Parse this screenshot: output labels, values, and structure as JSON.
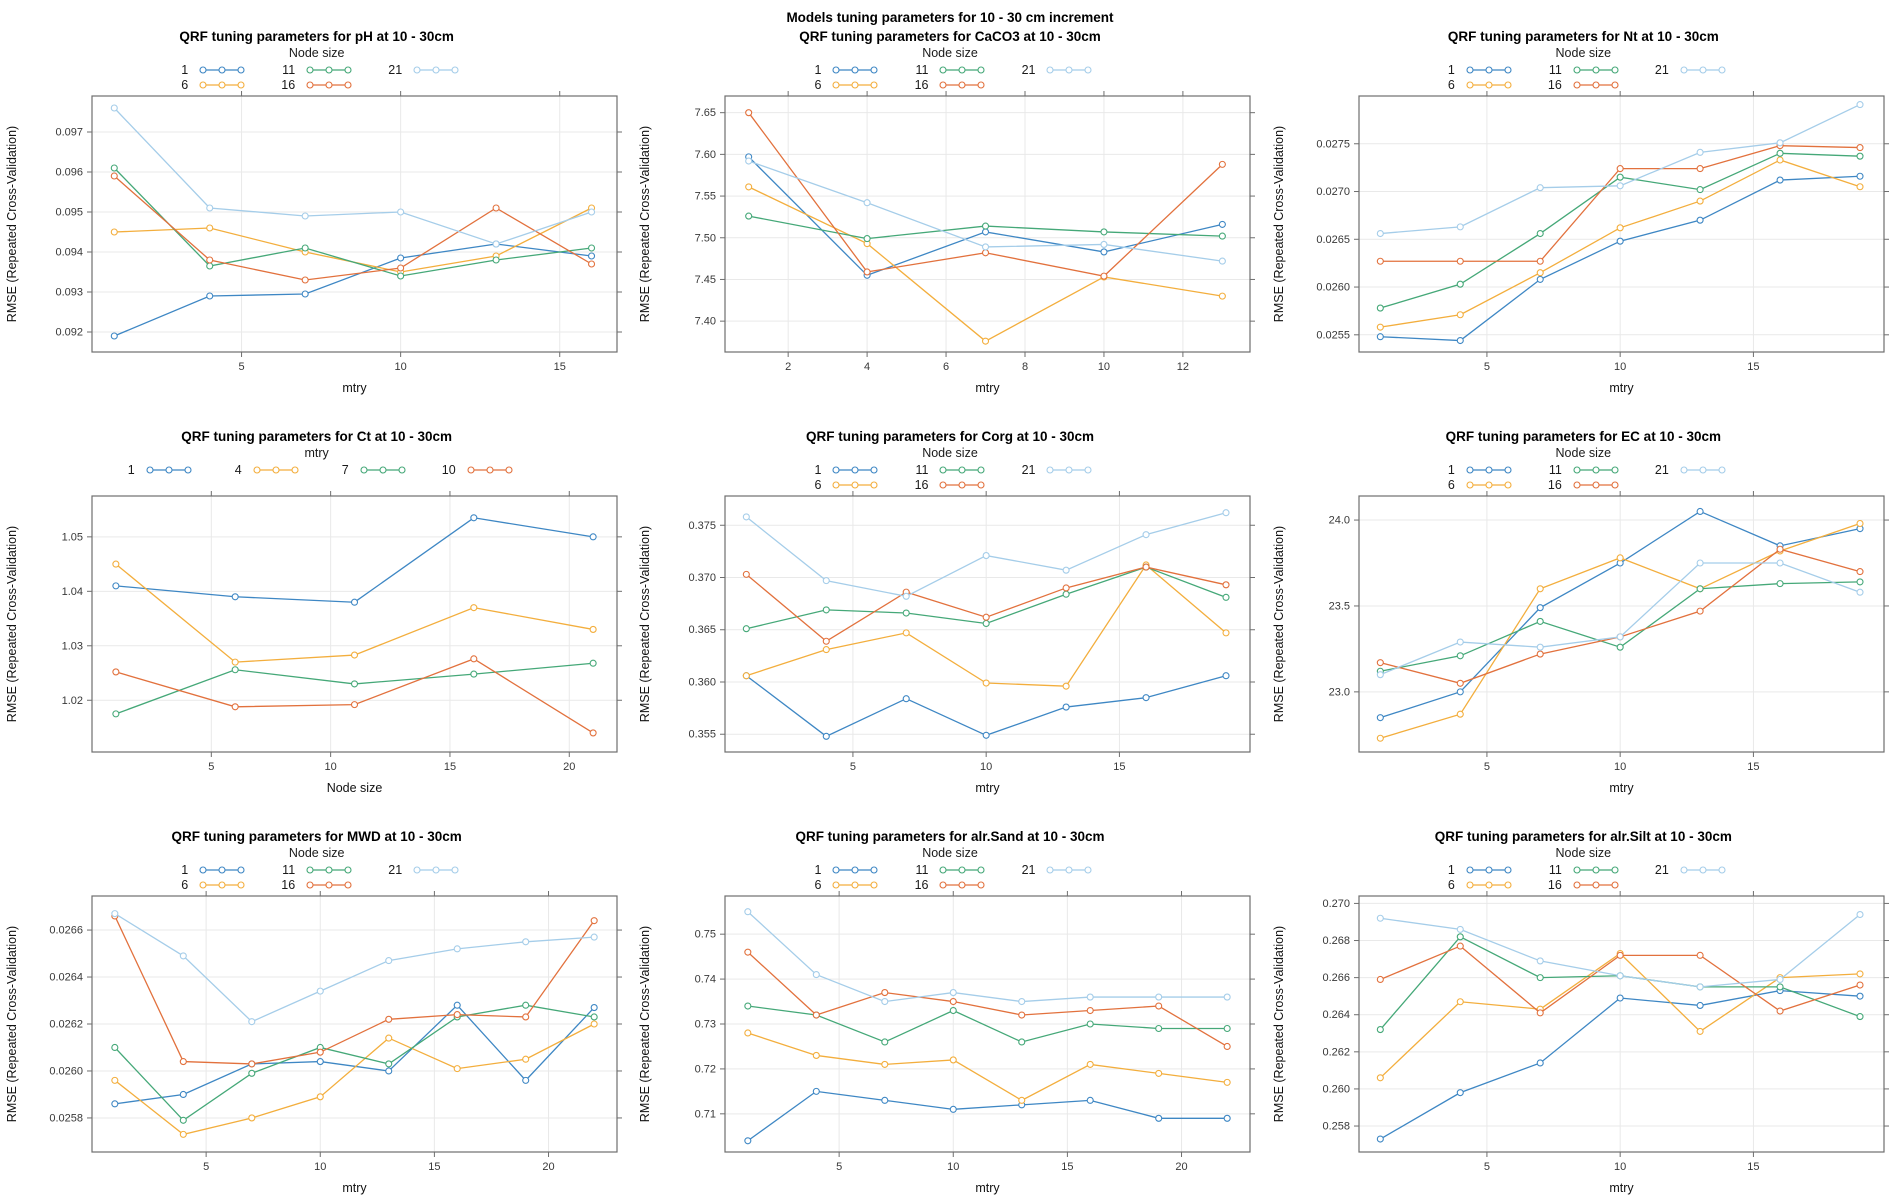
{
  "figure": {
    "background": "#ffffff",
    "border_color": "#6e6e6e",
    "grid_color": "#e9e9e9",
    "tick_color": "#6e6e6e"
  },
  "chart_data": [
    {
      "id": "ph",
      "type": "line",
      "title": "QRF tuning parameters for pH at 10 - 30cm",
      "legend_title": "Node size",
      "legend_position": "top",
      "xlabel": "mtry",
      "ylabel": "RMSE (Repeated Cross-Validation)",
      "x": [
        1,
        4,
        7,
        10,
        13,
        16
      ],
      "xticks": [
        5,
        10,
        15
      ],
      "xlim": [
        0.3,
        16.8
      ],
      "yticks": [
        0.092,
        0.093,
        0.094,
        0.095,
        0.096,
        0.097
      ],
      "ytick_labels": [
        "0.092",
        "0.093",
        "0.094",
        "0.095",
        "0.096",
        "0.097"
      ],
      "ylim": [
        0.0915,
        0.0979
      ],
      "grid": true,
      "series": [
        {
          "name": "1",
          "color": "#3E87C4",
          "values": [
            0.0919,
            0.0929,
            0.09295,
            0.09385,
            0.0942,
            0.0939
          ]
        },
        {
          "name": "6",
          "color": "#F3AE3D",
          "values": [
            0.0945,
            0.0946,
            0.094,
            0.0935,
            0.0939,
            0.0951
          ]
        },
        {
          "name": "11",
          "color": "#45A878",
          "values": [
            0.0961,
            0.09365,
            0.0941,
            0.0934,
            0.0938,
            0.0941
          ]
        },
        {
          "name": "16",
          "color": "#E2713D",
          "values": [
            0.0959,
            0.0938,
            0.0933,
            0.0936,
            0.0951,
            0.0937
          ]
        },
        {
          "name": "21",
          "color": "#A5CDE9",
          "values": [
            0.0976,
            0.0951,
            0.0949,
            0.095,
            0.0942,
            0.095
          ]
        }
      ]
    },
    {
      "id": "caco3",
      "type": "line",
      "supertitle": "Models tuning parameters for 10 - 30 cm increment",
      "title": "QRF tuning parameters for CaCO3 at 10 - 30cm",
      "legend_title": "Node size",
      "legend_position": "top",
      "xlabel": "mtry",
      "ylabel": "RMSE (Repeated Cross-Validation)",
      "x": [
        1,
        4,
        7,
        10,
        13
      ],
      "xticks": [
        2,
        4,
        6,
        8,
        10,
        12
      ],
      "xlim": [
        0.4,
        13.7
      ],
      "yticks": [
        7.4,
        7.45,
        7.5,
        7.55,
        7.6,
        7.65
      ],
      "ytick_labels": [
        "7.40",
        "7.45",
        "7.50",
        "7.55",
        "7.60",
        "7.65"
      ],
      "ylim": [
        7.363,
        7.67
      ],
      "grid": true,
      "series": [
        {
          "name": "1",
          "color": "#3E87C4",
          "values": [
            7.597,
            7.455,
            7.507,
            7.483,
            7.516
          ]
        },
        {
          "name": "6",
          "color": "#F3AE3D",
          "values": [
            7.561,
            7.493,
            7.376,
            7.453,
            7.43
          ]
        },
        {
          "name": "11",
          "color": "#45A878",
          "values": [
            7.526,
            7.499,
            7.514,
            7.507,
            7.502
          ]
        },
        {
          "name": "16",
          "color": "#E2713D",
          "values": [
            7.65,
            7.459,
            7.482,
            7.454,
            7.588
          ]
        },
        {
          "name": "21",
          "color": "#A5CDE9",
          "values": [
            7.592,
            7.542,
            7.489,
            7.492,
            7.472
          ]
        }
      ]
    },
    {
      "id": "nt",
      "type": "line",
      "title": "QRF tuning parameters for Nt at 10 - 30cm",
      "legend_title": "Node size",
      "legend_position": "top",
      "xlabel": "mtry",
      "ylabel": "RMSE (Repeated Cross-Validation)",
      "x": [
        1,
        4,
        7,
        10,
        13,
        16,
        19
      ],
      "xticks": [
        5,
        10,
        15
      ],
      "xlim": [
        0.2,
        19.9
      ],
      "yticks": [
        0.0255,
        0.026,
        0.0265,
        0.027,
        0.0275
      ],
      "ytick_labels": [
        "0.0255",
        "0.0260",
        "0.0265",
        "0.0270",
        "0.0275"
      ],
      "ylim": [
        0.02532,
        0.028
      ],
      "grid": true,
      "series": [
        {
          "name": "1",
          "color": "#3E87C4",
          "values": [
            0.02548,
            0.02544,
            0.02608,
            0.02648,
            0.0267,
            0.02712,
            0.02716
          ]
        },
        {
          "name": "6",
          "color": "#F3AE3D",
          "values": [
            0.02558,
            0.02571,
            0.02615,
            0.02662,
            0.0269,
            0.02733,
            0.02705
          ]
        },
        {
          "name": "11",
          "color": "#45A878",
          "values": [
            0.02578,
            0.02603,
            0.02656,
            0.02715,
            0.02702,
            0.0274,
            0.02737
          ]
        },
        {
          "name": "16",
          "color": "#E2713D",
          "values": [
            0.02627,
            0.02627,
            0.02627,
            0.02724,
            0.02724,
            0.02748,
            0.02746
          ]
        },
        {
          "name": "21",
          "color": "#A5CDE9",
          "values": [
            0.02656,
            0.02663,
            0.02704,
            0.02706,
            0.02741,
            0.02751,
            0.02791
          ]
        }
      ]
    },
    {
      "id": "ct",
      "type": "line",
      "title": "QRF tuning parameters for Ct at 10 - 30cm",
      "legend_title": "mtry",
      "legend_position": "top",
      "xlabel": "Node size",
      "ylabel": "RMSE (Repeated Cross-Validation)",
      "x": [
        1,
        6,
        11,
        16,
        21
      ],
      "xticks": [
        5,
        10,
        15,
        20
      ],
      "xlim": [
        0,
        22
      ],
      "yticks": [
        1.02,
        1.03,
        1.04,
        1.05
      ],
      "ytick_labels": [
        "1.02",
        "1.03",
        "1.04",
        "1.05"
      ],
      "ylim": [
        1.0105,
        1.0575
      ],
      "grid": true,
      "series": [
        {
          "name": "1",
          "color": "#3E87C4",
          "values": [
            1.041,
            1.039,
            1.038,
            1.0535,
            1.05
          ]
        },
        {
          "name": "4",
          "color": "#F3AE3D",
          "values": [
            1.045,
            1.027,
            1.0283,
            1.037,
            1.033
          ]
        },
        {
          "name": "7",
          "color": "#45A878",
          "values": [
            1.0175,
            1.0256,
            1.023,
            1.0248,
            1.0268
          ]
        },
        {
          "name": "10",
          "color": "#E2713D",
          "values": [
            1.0252,
            1.0188,
            1.0192,
            1.0276,
            1.014
          ]
        }
      ]
    },
    {
      "id": "corg",
      "type": "line",
      "title": "QRF tuning parameters for Corg at 10 - 30cm",
      "legend_title": "Node size",
      "legend_position": "top",
      "xlabel": "mtry",
      "ylabel": "RMSE (Repeated Cross-Validation)",
      "x": [
        1,
        4,
        7,
        10,
        13,
        16,
        19
      ],
      "xticks": [
        5,
        10,
        15
      ],
      "xlim": [
        0.2,
        19.9
      ],
      "yticks": [
        0.355,
        0.36,
        0.365,
        0.37,
        0.375
      ],
      "ytick_labels": [
        "0.355",
        "0.360",
        "0.365",
        "0.370",
        "0.375"
      ],
      "ylim": [
        0.3533,
        0.3778
      ],
      "grid": true,
      "series": [
        {
          "name": "1",
          "color": "#3E87C4",
          "values": [
            0.3606,
            0.3548,
            0.3584,
            0.3549,
            0.3576,
            0.3585,
            0.3606
          ]
        },
        {
          "name": "6",
          "color": "#F3AE3D",
          "values": [
            0.3606,
            0.3631,
            0.3647,
            0.3599,
            0.3596,
            0.3712,
            0.3647
          ]
        },
        {
          "name": "11",
          "color": "#45A878",
          "values": [
            0.3651,
            0.3669,
            0.3666,
            0.3656,
            0.3684,
            0.371,
            0.3681
          ]
        },
        {
          "name": "16",
          "color": "#E2713D",
          "values": [
            0.3703,
            0.3639,
            0.3686,
            0.3662,
            0.369,
            0.371,
            0.3693
          ]
        },
        {
          "name": "21",
          "color": "#A5CDE9",
          "values": [
            0.3758,
            0.3697,
            0.3682,
            0.3721,
            0.3707,
            0.3741,
            0.3762
          ]
        }
      ]
    },
    {
      "id": "ec",
      "type": "line",
      "title": "QRF tuning parameters for EC at 10 - 30cm",
      "legend_title": "Node size",
      "legend_position": "top",
      "xlabel": "mtry",
      "ylabel": "RMSE (Repeated Cross-Validation)",
      "x": [
        1,
        4,
        7,
        10,
        13,
        16,
        19
      ],
      "xticks": [
        5,
        10,
        15
      ],
      "xlim": [
        0.2,
        19.9
      ],
      "yticks": [
        23.0,
        23.5,
        24.0
      ],
      "ytick_labels": [
        "23.0",
        "23.5",
        "24.0"
      ],
      "ylim": [
        22.65,
        24.14
      ],
      "grid": true,
      "series": [
        {
          "name": "1",
          "color": "#3E87C4",
          "values": [
            22.85,
            23.0,
            23.49,
            23.75,
            24.05,
            23.85,
            23.95
          ]
        },
        {
          "name": "6",
          "color": "#F3AE3D",
          "values": [
            22.73,
            22.87,
            23.6,
            23.78,
            23.6,
            23.82,
            23.98
          ]
        },
        {
          "name": "11",
          "color": "#45A878",
          "values": [
            23.12,
            23.21,
            23.41,
            23.26,
            23.6,
            23.63,
            23.64
          ]
        },
        {
          "name": "16",
          "color": "#E2713D",
          "values": [
            23.17,
            23.05,
            23.22,
            23.32,
            23.47,
            23.83,
            23.7
          ]
        },
        {
          "name": "21",
          "color": "#A5CDE9",
          "values": [
            23.1,
            23.29,
            23.26,
            23.32,
            23.75,
            23.75,
            23.58
          ]
        }
      ]
    },
    {
      "id": "mwd",
      "type": "line",
      "title": "QRF tuning parameters for MWD at 10 - 30cm",
      "legend_title": "Node size",
      "legend_position": "top",
      "xlabel": "mtry",
      "ylabel": "RMSE (Repeated Cross-Validation)",
      "x": [
        1,
        4,
        7,
        10,
        13,
        16,
        19,
        22
      ],
      "xticks": [
        5,
        10,
        15,
        20
      ],
      "xlim": [
        0,
        23
      ],
      "yticks": [
        0.0258,
        0.026,
        0.0262,
        0.0264,
        0.0266
      ],
      "ytick_labels": [
        "0.0258",
        "0.0260",
        "0.0262",
        "0.0264",
        "0.0266"
      ],
      "ylim": [
        0.025655,
        0.026745
      ],
      "grid": true,
      "series": [
        {
          "name": "1",
          "color": "#3E87C4",
          "values": [
            0.02586,
            0.0259,
            0.02603,
            0.02604,
            0.026,
            0.02628,
            0.02596,
            0.02627
          ]
        },
        {
          "name": "6",
          "color": "#F3AE3D",
          "values": [
            0.02596,
            0.02573,
            0.0258,
            0.02589,
            0.02614,
            0.02601,
            0.02605,
            0.0262
          ]
        },
        {
          "name": "11",
          "color": "#45A878",
          "values": [
            0.0261,
            0.02579,
            0.02599,
            0.0261,
            0.02603,
            0.02623,
            0.02628,
            0.02623
          ]
        },
        {
          "name": "16",
          "color": "#E2713D",
          "values": [
            0.02666,
            0.02604,
            0.02603,
            0.02608,
            0.02622,
            0.02624,
            0.02623,
            0.02664
          ]
        },
        {
          "name": "21",
          "color": "#A5CDE9",
          "values": [
            0.02667,
            0.02649,
            0.02621,
            0.02634,
            0.02647,
            0.02652,
            0.02655,
            0.02657
          ]
        }
      ]
    },
    {
      "id": "alr-sand",
      "type": "line",
      "title": "QRF tuning parameters for alr.Sand at 10 - 30cm",
      "legend_title": "Node size",
      "legend_position": "top",
      "xlabel": "mtry",
      "ylabel": "RMSE (Repeated Cross-Validation)",
      "x": [
        1,
        4,
        7,
        10,
        13,
        16,
        19,
        22
      ],
      "xticks": [
        5,
        10,
        15,
        20
      ],
      "xlim": [
        0,
        23
      ],
      "yticks": [
        0.71,
        0.72,
        0.73,
        0.74,
        0.75
      ],
      "ytick_labels": [
        "0.71",
        "0.72",
        "0.73",
        "0.74",
        "0.75"
      ],
      "ylim": [
        0.7015,
        0.7585
      ],
      "grid": true,
      "series": [
        {
          "name": "1",
          "color": "#3E87C4",
          "values": [
            0.704,
            0.715,
            0.713,
            0.711,
            0.712,
            0.713,
            0.709,
            0.709
          ]
        },
        {
          "name": "6",
          "color": "#F3AE3D",
          "values": [
            0.728,
            0.723,
            0.721,
            0.722,
            0.713,
            0.721,
            0.719,
            0.717
          ]
        },
        {
          "name": "11",
          "color": "#45A878",
          "values": [
            0.734,
            0.732,
            0.726,
            0.733,
            0.726,
            0.73,
            0.729,
            0.729
          ]
        },
        {
          "name": "16",
          "color": "#E2713D",
          "values": [
            0.746,
            0.732,
            0.737,
            0.735,
            0.732,
            0.733,
            0.734,
            0.725
          ]
        },
        {
          "name": "21",
          "color": "#A5CDE9",
          "values": [
            0.755,
            0.741,
            0.735,
            0.737,
            0.735,
            0.736,
            0.736,
            0.736
          ]
        }
      ]
    },
    {
      "id": "alr-silt",
      "type": "line",
      "title": "QRF tuning parameters for alr.Silt at 10 - 30cm",
      "legend_title": "Node size",
      "legend_position": "top",
      "xlabel": "mtry",
      "ylabel": "RMSE (Repeated Cross-Validation)",
      "x": [
        1,
        4,
        7,
        10,
        13,
        16,
        19
      ],
      "xticks": [
        5,
        10,
        15
      ],
      "xlim": [
        0.2,
        19.9
      ],
      "yticks": [
        0.258,
        0.26,
        0.262,
        0.264,
        0.266,
        0.268,
        0.27
      ],
      "ytick_labels": [
        "0.258",
        "0.260",
        "0.262",
        "0.264",
        "0.266",
        "0.268",
        "0.270"
      ],
      "ylim": [
        0.2566,
        0.2704
      ],
      "grid": true,
      "series": [
        {
          "name": "1",
          "color": "#3E87C4",
          "values": [
            0.2573,
            0.2598,
            0.2614,
            0.2649,
            0.2645,
            0.2653,
            0.265
          ]
        },
        {
          "name": "6",
          "color": "#F3AE3D",
          "values": [
            0.2606,
            0.2647,
            0.2643,
            0.2673,
            0.2631,
            0.266,
            0.2662
          ]
        },
        {
          "name": "11",
          "color": "#45A878",
          "values": [
            0.2632,
            0.2682,
            0.266,
            0.2661,
            0.2655,
            0.2655,
            0.2639
          ]
        },
        {
          "name": "16",
          "color": "#E2713D",
          "values": [
            0.2659,
            0.2677,
            0.2641,
            0.2672,
            0.2672,
            0.2642,
            0.2656
          ]
        },
        {
          "name": "21",
          "color": "#A5CDE9",
          "values": [
            0.2692,
            0.2686,
            0.2669,
            0.2661,
            0.2655,
            0.2659,
            0.2694
          ]
        }
      ]
    }
  ]
}
